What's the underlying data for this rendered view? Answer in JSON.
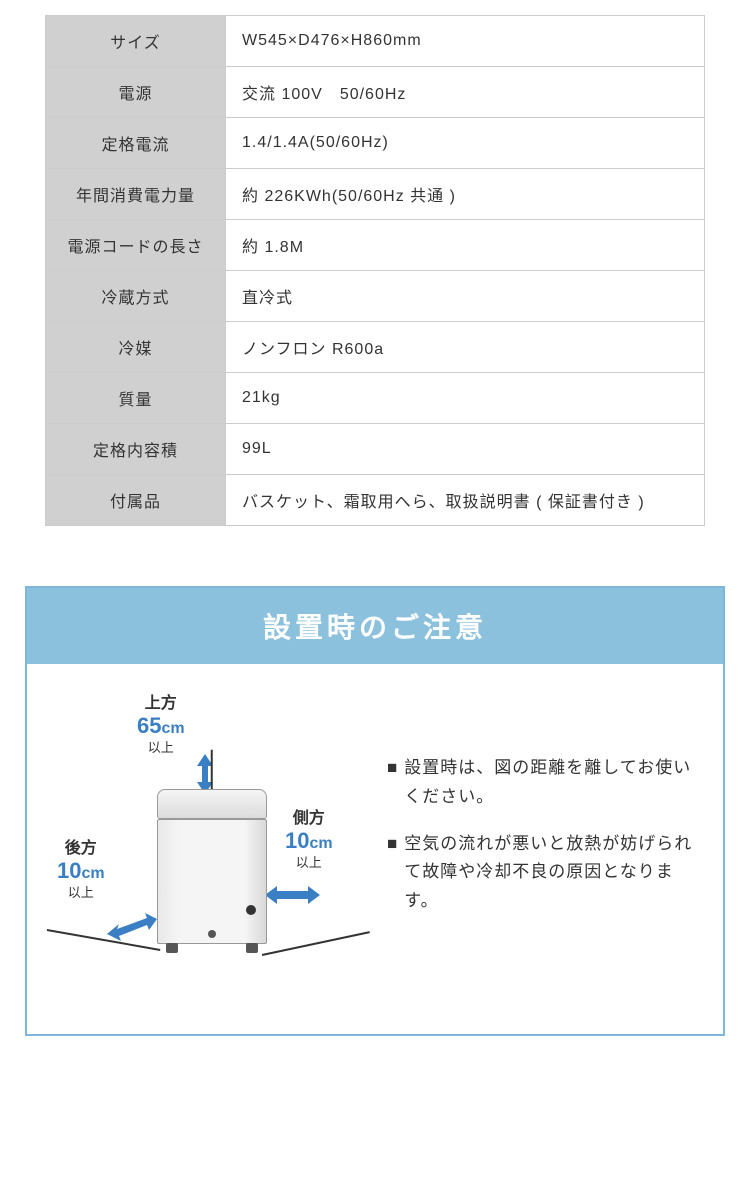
{
  "spec_table": {
    "rows": [
      {
        "label": "サイズ",
        "value": "W545×D476×H860mm"
      },
      {
        "label": "電源",
        "value": "交流 100V　50/60Hz"
      },
      {
        "label": "定格電流",
        "value": "1.4/1.4A(50/60Hz)"
      },
      {
        "label": "年間消費電力量",
        "value": "約 226KWh(50/60Hz 共通 )"
      },
      {
        "label": "電源コードの長さ",
        "value": "約 1.8M"
      },
      {
        "label": "冷蔵方式",
        "value": "直冷式"
      },
      {
        "label": "冷媒",
        "value": "ノンフロン R600a"
      },
      {
        "label": "質量",
        "value": "21kg"
      },
      {
        "label": "定格内容積",
        "value": "99L"
      },
      {
        "label": "付属品",
        "value": "バスケット、霜取用へら、取扱説明書 ( 保証書付き )"
      }
    ],
    "label_bg": "#d0d0d0",
    "border_color": "#cccccc"
  },
  "notice": {
    "title": "設置時のご注意",
    "header_bg": "#8cc1de",
    "header_fg": "#ffffff",
    "border_color": "#7db8dc",
    "arrow_color": "#3a7fc4",
    "clearances": {
      "top": {
        "title": "上方",
        "value": "65",
        "unit": "cm",
        "suffix": "以上"
      },
      "back": {
        "title": "後方",
        "value": "10",
        "unit": "cm",
        "suffix": "以上"
      },
      "side": {
        "title": "側方",
        "value": "10",
        "unit": "cm",
        "suffix": "以上"
      }
    },
    "bullets": [
      "設置時は、図の距離を離してお使いください。",
      "空気の流れが悪いと放熱が妨げられて故障や冷却不良の原因となります。"
    ]
  }
}
